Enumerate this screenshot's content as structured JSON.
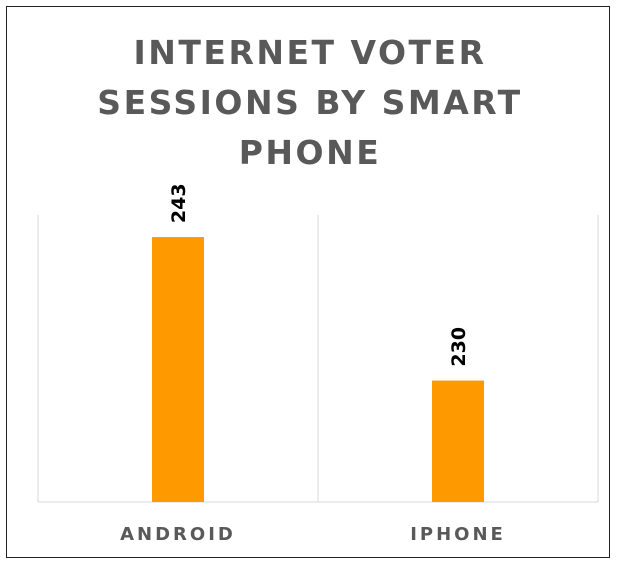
{
  "chart_data": {
    "type": "bar",
    "title": "INTERNET VOTER SESSIONS BY SMART PHONE",
    "categories": [
      "ANDROID",
      "IPHONE"
    ],
    "values": [
      243,
      230
    ],
    "data_labels": [
      "243",
      "230"
    ],
    "xlabel": "",
    "ylabel": "",
    "ylim": [
      219,
      245
    ],
    "grid": "vertical category separators",
    "legend": "none",
    "bar_color": "#FF9900",
    "gridline_color": "#D9D9D9",
    "title_color": "#595959",
    "label_color": "#000000"
  }
}
